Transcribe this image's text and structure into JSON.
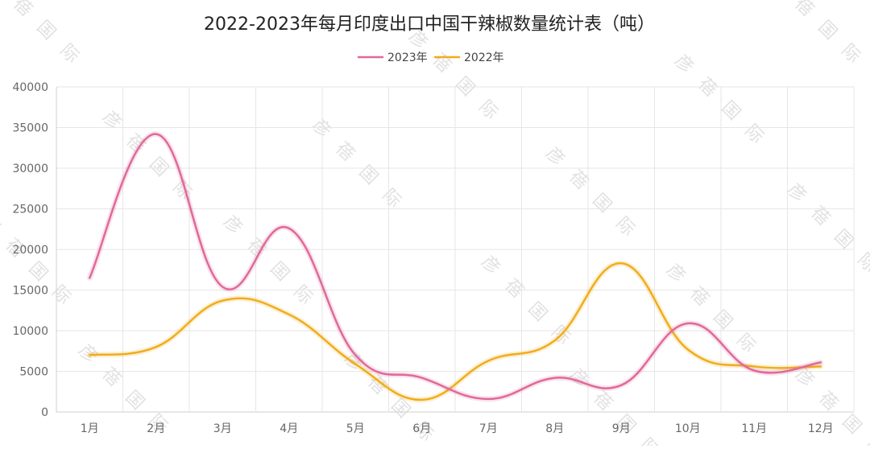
{
  "chart_data": {
    "type": "line",
    "title": "2022-2023年每月印度出口中国干辣椒数量统计表（吨）",
    "categories": [
      "1月",
      "2月",
      "3月",
      "4月",
      "5月",
      "6月",
      "7月",
      "8月",
      "9月",
      "10月",
      "11月",
      "12月"
    ],
    "series": [
      {
        "name": "2023年",
        "color": "#e0699a",
        "values": [
          16500,
          34200,
          15400,
          22600,
          7000,
          4200,
          1600,
          4200,
          3300,
          10900,
          5100,
          6100
        ]
      },
      {
        "name": "2022年",
        "color": "#f0ad1c",
        "values": [
          7000,
          8000,
          13700,
          12000,
          5900,
          1500,
          6300,
          8800,
          18300,
          7700,
          5600,
          5600
        ]
      }
    ],
    "ylim": [
      0,
      40000
    ],
    "yticks": [
      0,
      5000,
      10000,
      15000,
      20000,
      25000,
      30000,
      35000,
      40000
    ],
    "grid": true,
    "smooth": true,
    "legend_position": "top-center"
  },
  "watermark": "彦 蓓 国 际"
}
